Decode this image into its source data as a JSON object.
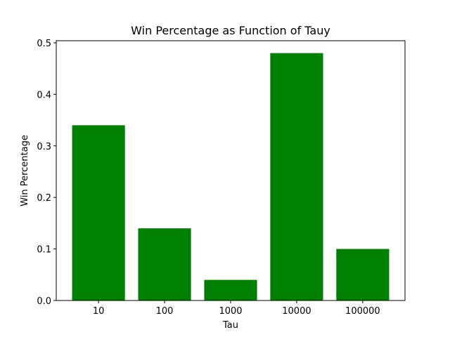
{
  "chart_data": {
    "type": "bar",
    "title": "Win Percentage as Function of Tauy",
    "xlabel": "Tau",
    "ylabel": "Win Percentage",
    "categories": [
      "10",
      "100",
      "1000",
      "10000",
      "100000"
    ],
    "values": [
      0.34,
      0.14,
      0.04,
      0.48,
      0.1
    ],
    "ylim": [
      0,
      0.504
    ],
    "yticks": [
      0.0,
      0.1,
      0.2,
      0.3,
      0.4,
      0.5
    ],
    "ytick_labels": [
      "0.0",
      "0.1",
      "0.2",
      "0.3",
      "0.4",
      "0.5"
    ],
    "bar_color": "#008000",
    "grid": false,
    "legend": "none"
  }
}
